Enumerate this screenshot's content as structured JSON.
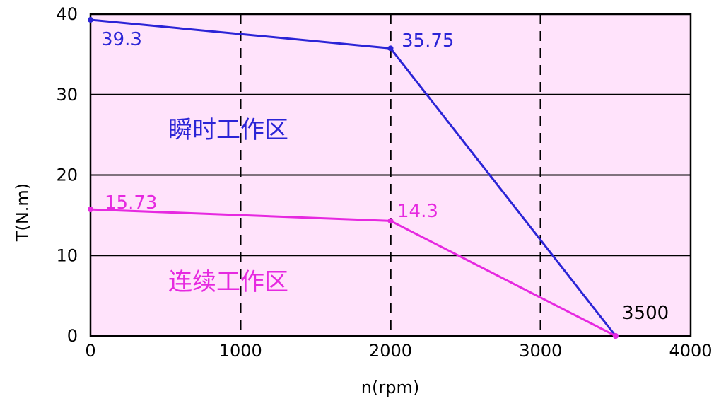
{
  "chart_data": {
    "type": "line",
    "xlabel": "n(rpm)",
    "ylabel": "T(N.m)",
    "xlim": [
      0,
      4000
    ],
    "ylim": [
      0,
      40
    ],
    "x_ticks": [
      "0",
      "1000",
      "2000",
      "3000",
      "4000"
    ],
    "y_ticks": [
      "0",
      "10",
      "20",
      "30",
      "40"
    ],
    "grid": {
      "horizontal": "solid",
      "vertical": "dashed"
    },
    "background_color": "#ffe3fb",
    "series": [
      {
        "name": "瞬时工作区",
        "color": "#2b24d6",
        "x": [
          0,
          2000,
          3500
        ],
        "y": [
          39.3,
          35.75,
          0
        ]
      },
      {
        "name": "连续工作区",
        "color": "#e629e0",
        "x": [
          0,
          2000,
          3500
        ],
        "y": [
          15.73,
          14.3,
          0
        ]
      }
    ],
    "data_labels": [
      {
        "text": "39.3",
        "series": 0,
        "point": 0
      },
      {
        "text": "35.75",
        "series": 0,
        "point": 1
      },
      {
        "text": "15.73",
        "series": 1,
        "point": 0
      },
      {
        "text": "14.3",
        "series": 1,
        "point": 1
      },
      {
        "text": "3500",
        "series": 0,
        "point": 2
      }
    ]
  }
}
